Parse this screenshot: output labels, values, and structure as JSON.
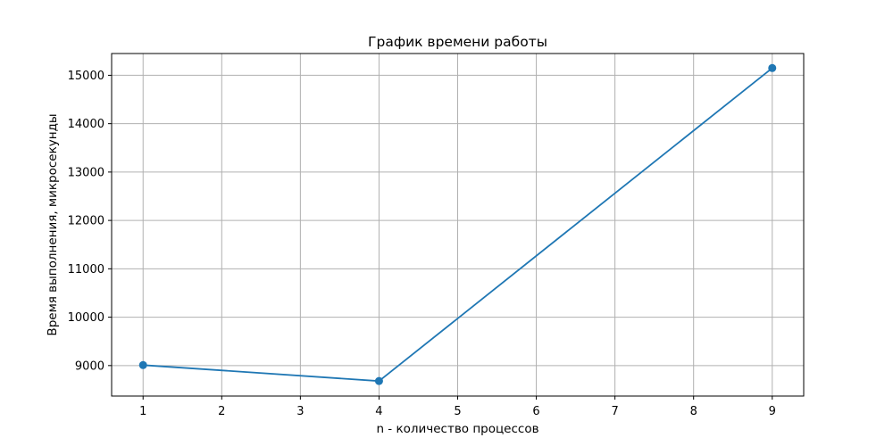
{
  "chart_data": {
    "type": "line",
    "title": "График времени работы",
    "xlabel": "n - количество процессов",
    "ylabel": "Время выполнения, микросекунды",
    "x": [
      1,
      4,
      9
    ],
    "y": [
      9010,
      8680,
      15150
    ],
    "xlim": [
      0.6,
      9.4
    ],
    "ylim": [
      8370,
      15450
    ],
    "xticks": [
      1,
      2,
      3,
      4,
      5,
      6,
      7,
      8,
      9
    ],
    "yticks": [
      9000,
      10000,
      11000,
      12000,
      13000,
      14000,
      15000
    ],
    "grid": true,
    "markers": "circle",
    "line_color": "#1f77b4",
    "grid_color": "#b0b0b0"
  }
}
